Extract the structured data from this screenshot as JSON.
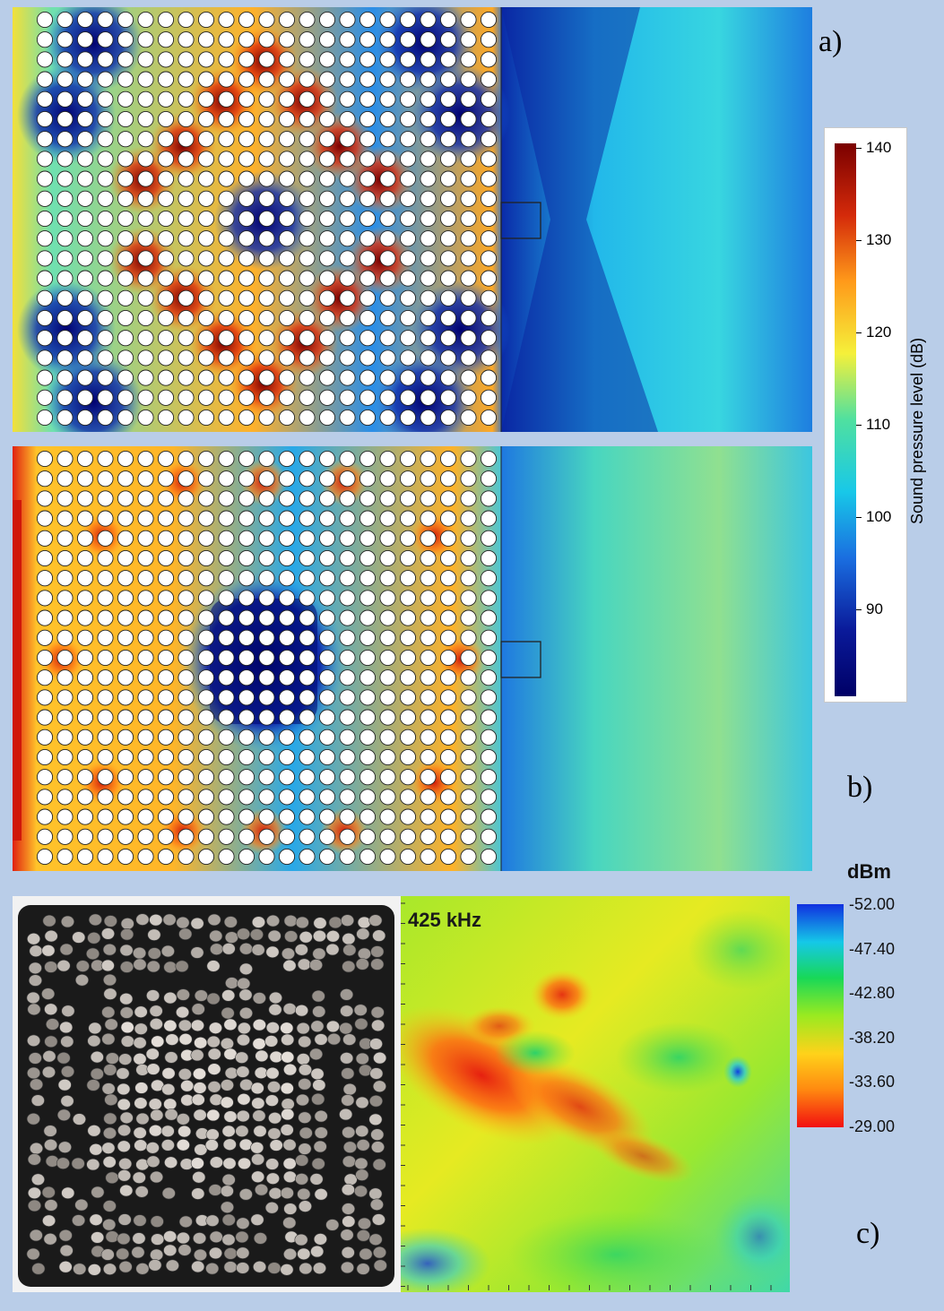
{
  "panels": {
    "a": {
      "label": "a)"
    },
    "b": {
      "label": "b)"
    },
    "c": {
      "label": "c)",
      "frequency_label": "425 kHz"
    }
  },
  "spl_colorbar": {
    "title": "Sound pressure level (dB)",
    "ticks": [
      "140",
      "130",
      "120",
      "110",
      "100",
      "90"
    ],
    "colors": [
      "#7a0000",
      "#d42a0a",
      "#ff9a1a",
      "#f5f03a",
      "#4fe0a0",
      "#18c8e8",
      "#1a6ee0",
      "#0a1a9a",
      "#000066"
    ]
  },
  "dbm_colorbar": {
    "title": "dBm",
    "ticks": [
      "-52.00",
      "-47.40",
      "-42.80",
      "-38.20",
      "-33.60",
      "-29.00"
    ],
    "colors": [
      "#1030e0",
      "#15c8e8",
      "#18d858",
      "#9aea20",
      "#ffd21a",
      "#ff8a10",
      "#f21010"
    ]
  },
  "colors": {
    "background": "#b9cde8",
    "cylinder_fill": "#ffffff",
    "plate": "#1a1a1a"
  }
}
